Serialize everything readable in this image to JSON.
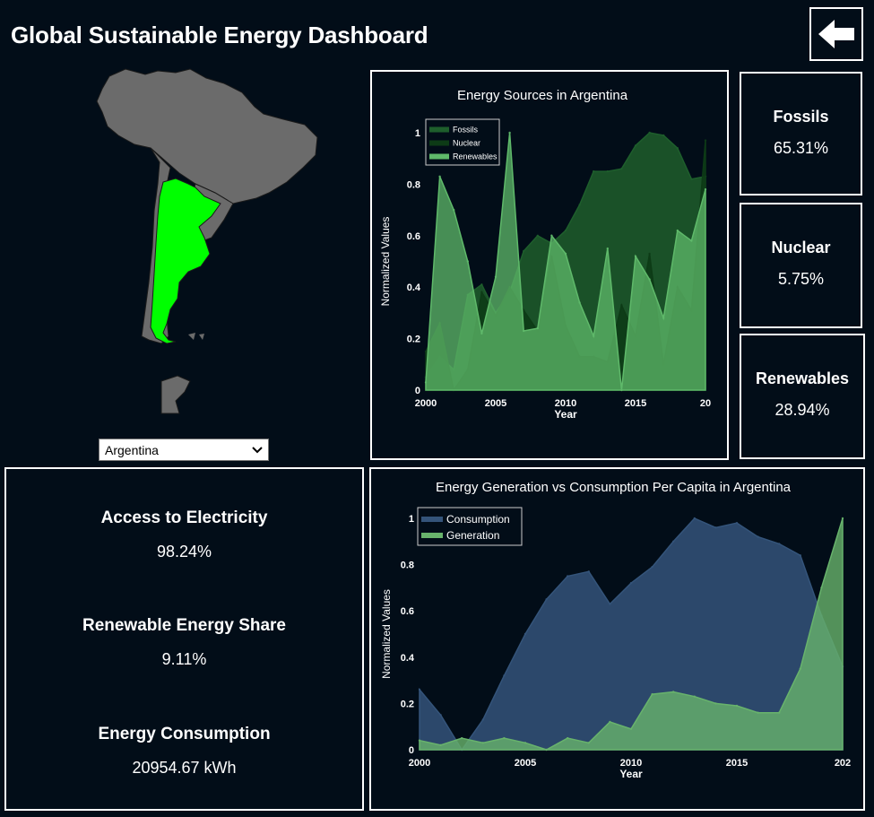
{
  "header": {
    "title": "Global Sustainable Energy Dashboard"
  },
  "icons": {
    "back": "arrow-left-icon"
  },
  "country_select": {
    "value": "Argentina"
  },
  "side_cards": [
    {
      "label": "Fossils",
      "value": "65.31%"
    },
    {
      "label": "Nuclear",
      "value": "5.75%"
    },
    {
      "label": "Renewables",
      "value": "28.94%"
    }
  ],
  "left_stats": [
    {
      "label": "Access to Electricity",
      "value": "98.24%"
    },
    {
      "label": "Renewable Energy Share",
      "value": "9.11%"
    },
    {
      "label": "Energy Consumption",
      "value": "20954.67 kWh"
    }
  ],
  "colors": {
    "background": "#020d18",
    "highlight_country": "#00ff00",
    "map_land": "#6b6b6b",
    "fossils": "#1e5e2c",
    "nuclear": "#0d3b16",
    "renewables": "#5fb96a",
    "consumption": "#34547a",
    "generation": "#68b36c"
  },
  "chart_data": [
    {
      "type": "area",
      "title": "Energy Sources in Argentina",
      "xlabel": "Year",
      "ylabel": "Normalized Values",
      "x": [
        2000,
        2001,
        2002,
        2003,
        2004,
        2005,
        2006,
        2007,
        2008,
        2009,
        2010,
        2011,
        2012,
        2013,
        2014,
        2015,
        2016,
        2017,
        2018,
        2019,
        2020
      ],
      "series": [
        {
          "name": "Fossils",
          "values": [
            0.05,
            0.13,
            0.08,
            0.37,
            0.41,
            0.3,
            0.38,
            0.54,
            0.6,
            0.57,
            0.62,
            0.72,
            0.85,
            0.85,
            0.86,
            0.95,
            1.0,
            0.99,
            0.94,
            0.82,
            0.83
          ]
        },
        {
          "name": "Nuclear",
          "values": [
            0.15,
            0.26,
            0.0,
            0.08,
            0.38,
            0.29,
            0.4,
            0.31,
            0.23,
            0.52,
            0.25,
            0.13,
            0.13,
            0.11,
            0.33,
            0.21,
            0.53,
            0.1,
            0.4,
            0.31,
            0.97
          ]
        },
        {
          "name": "Renewables",
          "values": [
            0.03,
            0.83,
            0.7,
            0.5,
            0.22,
            0.44,
            1.0,
            0.23,
            0.24,
            0.6,
            0.53,
            0.34,
            0.21,
            0.55,
            0.0,
            0.52,
            0.43,
            0.28,
            0.62,
            0.58,
            0.78
          ]
        }
      ],
      "xticks": [
        "2000",
        "2005",
        "2010",
        "2015",
        "20"
      ],
      "yticks": [
        "0",
        "0.2",
        "0.4",
        "0.6",
        "0.8",
        "1"
      ],
      "ylim": [
        0,
        1
      ],
      "legend": "top-left"
    },
    {
      "type": "area",
      "title": "Energy Generation vs Consumption Per Capita in Argentina",
      "xlabel": "Year",
      "ylabel": "Normalized Values",
      "x": [
        2000,
        2001,
        2002,
        2003,
        2004,
        2005,
        2006,
        2007,
        2008,
        2009,
        2010,
        2011,
        2012,
        2013,
        2014,
        2015,
        2016,
        2017,
        2018,
        2019,
        2020
      ],
      "series": [
        {
          "name": "Consumption",
          "values": [
            0.26,
            0.15,
            0.0,
            0.13,
            0.32,
            0.5,
            0.65,
            0.75,
            0.77,
            0.63,
            0.72,
            0.79,
            0.9,
            1.0,
            0.96,
            0.98,
            0.92,
            0.89,
            0.84,
            0.58,
            0.36
          ]
        },
        {
          "name": "Generation",
          "values": [
            0.04,
            0.02,
            0.05,
            0.03,
            0.05,
            0.03,
            0.0,
            0.05,
            0.03,
            0.12,
            0.09,
            0.24,
            0.25,
            0.23,
            0.2,
            0.19,
            0.16,
            0.16,
            0.35,
            0.7,
            1.0
          ]
        }
      ],
      "xticks": [
        "2000",
        "2005",
        "2010",
        "2015",
        "202"
      ],
      "yticks": [
        "0",
        "0.2",
        "0.4",
        "0.6",
        "0.8",
        "1"
      ],
      "ylim": [
        0,
        1
      ],
      "legend": "top-left"
    }
  ]
}
